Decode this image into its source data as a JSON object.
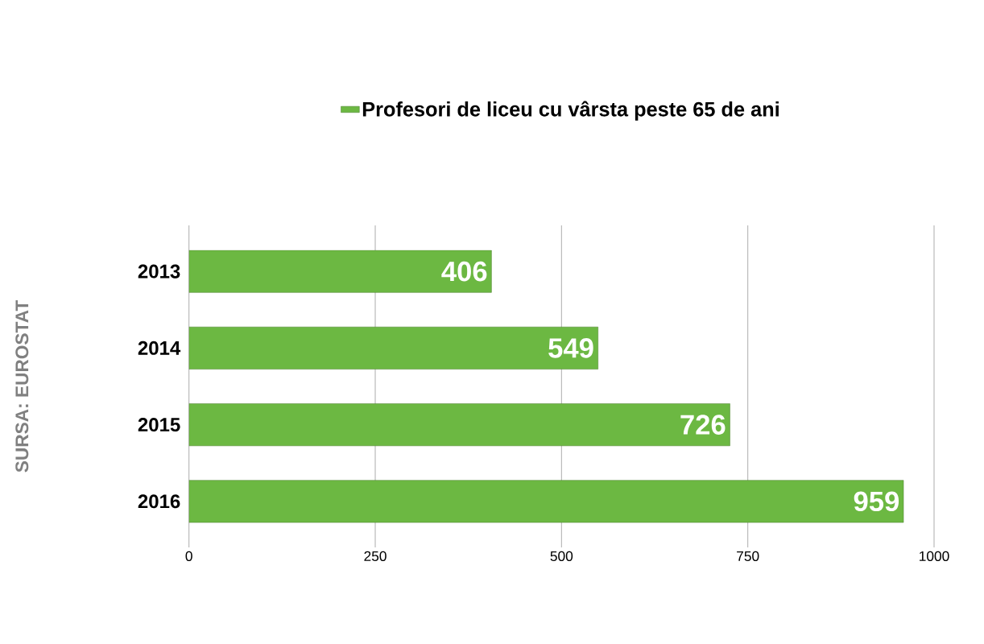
{
  "chart_data": {
    "type": "bar",
    "orientation": "horizontal",
    "categories": [
      "2013",
      "2014",
      "2015",
      "2016"
    ],
    "series": [
      {
        "name": "Profesori de liceu cu vârsta peste 65 de ani",
        "color": "#6cb842",
        "values": [
          406,
          549,
          726,
          959
        ]
      }
    ],
    "xlim": [
      0,
      1000
    ],
    "xticks": [
      0,
      250,
      500,
      750,
      1000
    ],
    "grid": "x",
    "legend": "top",
    "data_labels": true,
    "annotations": [
      "SURSA: EUROSTAT"
    ]
  }
}
